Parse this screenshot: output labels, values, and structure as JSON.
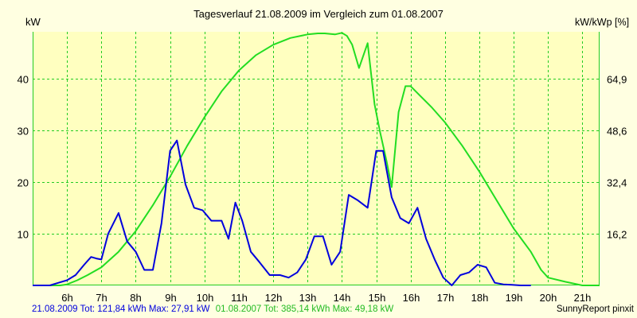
{
  "chart_data": {
    "type": "line",
    "title": "Tagesverlauf 21.08.2009 im Vergleich zum 01.08.2007",
    "ylabel_left": "kW",
    "ylabel_right": "kW/kWp [%]",
    "x_range": [
      5,
      21.5
    ],
    "ylim_left": [
      0,
      49
    ],
    "left_ticks": [
      "10",
      "20",
      "30",
      "40"
    ],
    "right_ticks": [
      "16,2",
      "32,4",
      "48,6",
      "64,9"
    ],
    "x_ticks": [
      "6h",
      "7h",
      "8h",
      "9h",
      "10h",
      "11h",
      "12h",
      "13h",
      "14h",
      "15h",
      "16h",
      "17h",
      "18h",
      "19h",
      "20h",
      "21h"
    ],
    "grid": true,
    "plot_background": "#ffffc0",
    "series": [
      {
        "name": "21.08.2009",
        "color": "#0000dd",
        "x": [
          5.0,
          5.5,
          5.75,
          6.0,
          6.25,
          6.5,
          6.7,
          6.85,
          7.0,
          7.2,
          7.5,
          7.75,
          8.0,
          8.25,
          8.5,
          8.75,
          9.0,
          9.2,
          9.45,
          9.7,
          9.95,
          10.2,
          10.5,
          10.7,
          10.9,
          11.1,
          11.35,
          11.6,
          11.9,
          12.2,
          12.45,
          12.7,
          12.95,
          13.2,
          13.45,
          13.7,
          13.95,
          14.2,
          14.45,
          14.75,
          15.0,
          15.2,
          15.45,
          15.7,
          15.95,
          16.2,
          16.45,
          16.7,
          16.95,
          17.2,
          17.45,
          17.7,
          17.95,
          18.2,
          18.45,
          18.7,
          18.95,
          19.2,
          19.5
        ],
        "y": [
          0,
          0,
          0.5,
          1,
          2,
          4,
          5.5,
          5.2,
          5,
          10,
          14,
          8.5,
          6.5,
          3,
          3,
          12,
          26,
          28,
          19.5,
          15,
          14.5,
          12.5,
          12.5,
          9,
          16,
          12.5,
          6.5,
          4.5,
          2,
          2,
          1.5,
          2.5,
          5,
          9.5,
          9.5,
          4,
          6.5,
          17.5,
          16.5,
          15,
          26,
          26,
          17,
          13,
          12,
          15,
          9,
          5,
          1.5,
          0,
          2,
          2.5,
          4,
          3.5,
          0.5,
          0.2,
          0.1,
          0,
          0
        ]
      },
      {
        "name": "01.08.2007",
        "color": "#22dd22",
        "x": [
          5.0,
          5.8,
          6.0,
          6.3,
          6.6,
          7.0,
          7.5,
          8.0,
          8.5,
          9.0,
          9.5,
          10.0,
          10.5,
          11.0,
          11.5,
          12.0,
          12.5,
          13.0,
          13.3,
          13.5,
          13.8,
          14.0,
          14.15,
          14.3,
          14.5,
          14.75,
          14.95,
          15.1,
          15.3,
          15.45,
          15.65,
          15.85,
          16.0,
          16.3,
          16.6,
          17.0,
          17.5,
          18.0,
          18.5,
          19.0,
          19.5,
          19.8,
          20.0,
          20.5,
          21.0,
          21.5
        ],
        "y": [
          0,
          0,
          0.2,
          1,
          2,
          3.5,
          6.5,
          10.5,
          15.5,
          21,
          27,
          32.5,
          37.5,
          41.5,
          44.5,
          46.5,
          47.8,
          48.5,
          48.7,
          48.7,
          48.5,
          48.8,
          48.2,
          46.5,
          42,
          46.8,
          35,
          30,
          24,
          19,
          33.5,
          38.5,
          38.5,
          36.5,
          34.5,
          31.5,
          27,
          22,
          16.5,
          11,
          6.5,
          3,
          1.5,
          0.7,
          0,
          0
        ]
      }
    ],
    "footer": {
      "blue_text": "21.08.2009 Tot: 121,84 kWh Max: 27,91 kW",
      "green_text": "01.08.2007 Tot: 385,14 kWh Max: 49,18 kW",
      "source_text": "SunnyReport pinxit"
    }
  }
}
